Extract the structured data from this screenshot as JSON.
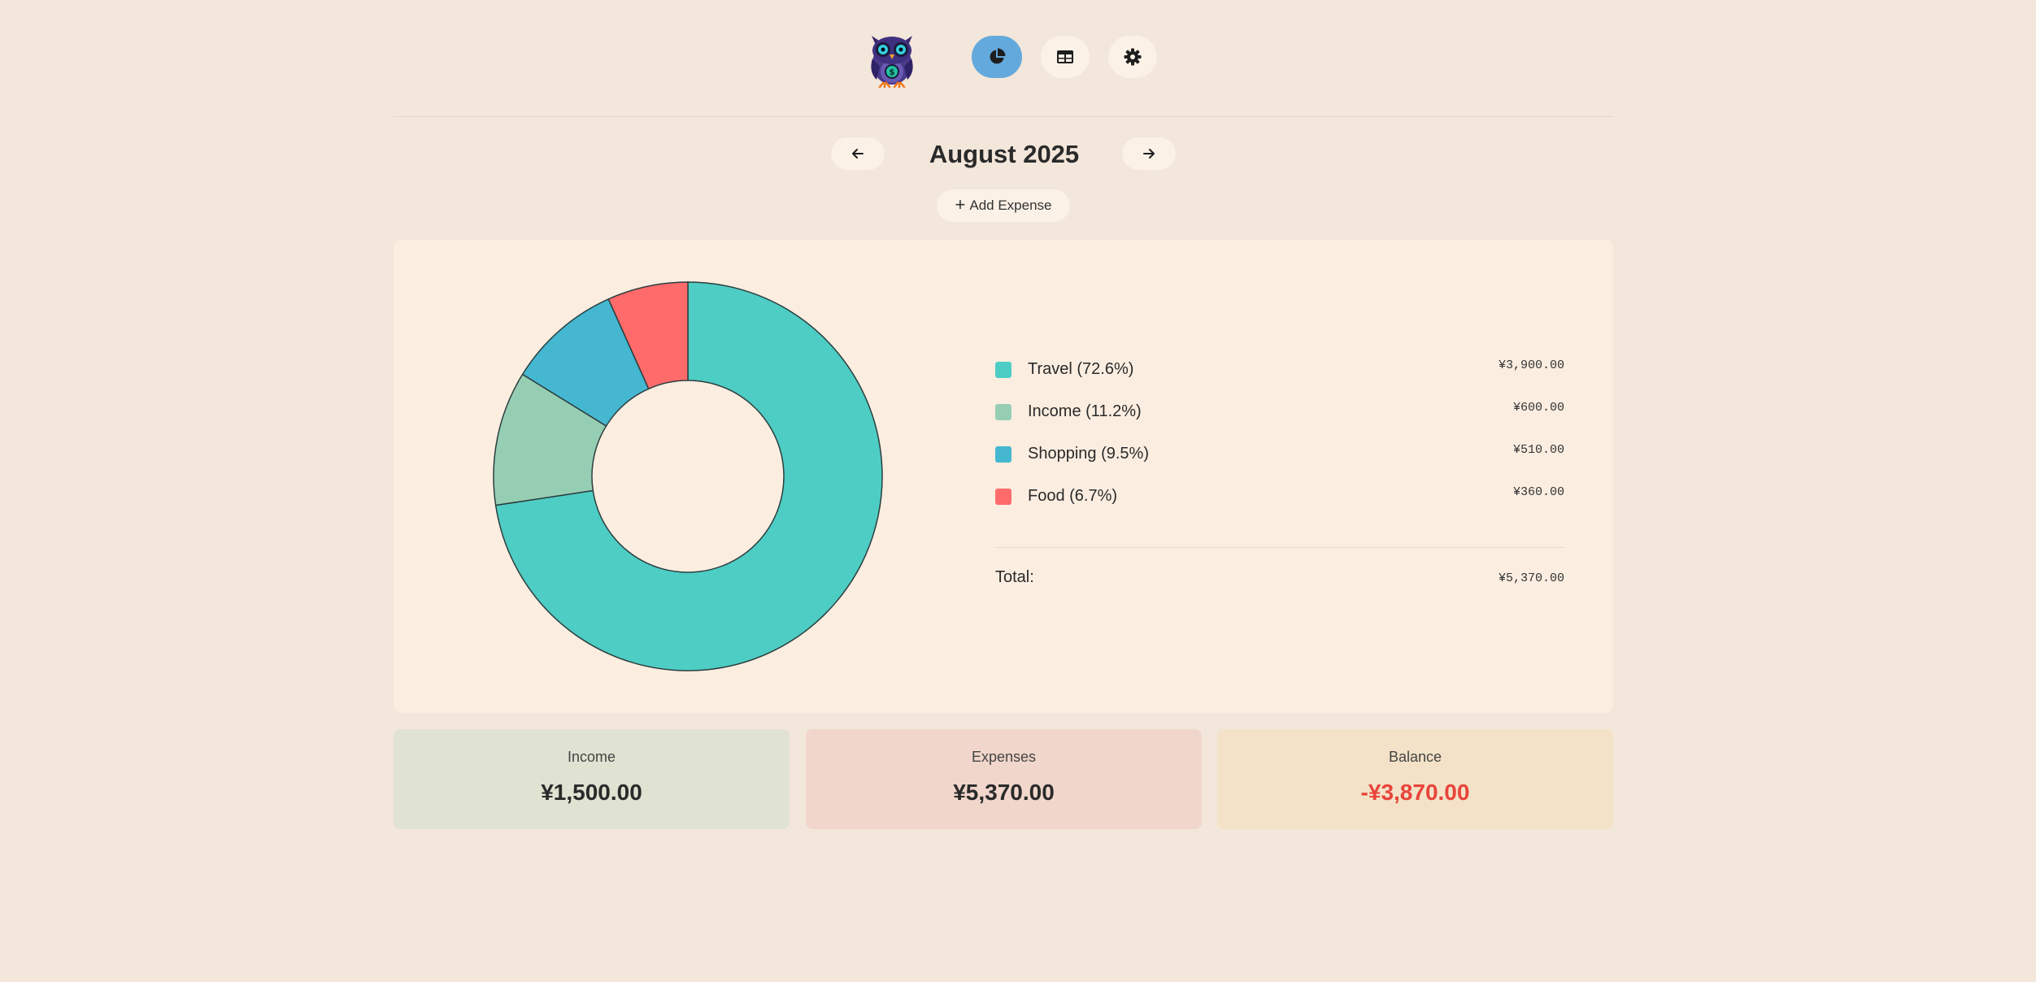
{
  "app": {
    "logo_icon": "owl-money-logo-icon"
  },
  "nav": {
    "items": [
      {
        "icon": "pie-chart-icon",
        "active": true
      },
      {
        "icon": "table-icon",
        "active": false
      },
      {
        "icon": "gear-icon",
        "active": false
      }
    ],
    "active_color": "#64a9dc"
  },
  "month_selector": {
    "prev_icon": "arrow-left-icon",
    "next_icon": "arrow-right-icon",
    "title": "August 2025"
  },
  "add_expense": {
    "icon": "plus-icon",
    "label": "Add Expense"
  },
  "chart_data": {
    "type": "pie",
    "subtype": "donut",
    "categories": [
      "Travel",
      "Income",
      "Shopping",
      "Food"
    ],
    "values": [
      3900,
      600,
      510,
      360
    ],
    "colors": [
      "#4ecdc4",
      "#96ceb4",
      "#45b7d1",
      "#ff6b6b"
    ],
    "legend_position": "right"
  },
  "legend": {
    "items": [
      {
        "label": "Travel (72.6%)",
        "amount": "¥3,900.00",
        "color": "#4ecdc4"
      },
      {
        "label": "Income (11.2%)",
        "amount": "¥600.00",
        "color": "#96ceb4"
      },
      {
        "label": "Shopping (9.5%)",
        "amount": "¥510.00",
        "color": "#45b7d1"
      },
      {
        "label": "Food (6.7%)",
        "amount": "¥360.00",
        "color": "#ff6b6b"
      }
    ],
    "total_label": "Total:",
    "total_amount": "¥5,370.00"
  },
  "summary": {
    "income": {
      "title": "Income",
      "value": "¥1,500.00"
    },
    "expenses": {
      "title": "Expenses",
      "value": "¥5,370.00"
    },
    "balance": {
      "title": "Balance",
      "value": "-¥3,870.00",
      "color": "#e8443a"
    }
  }
}
